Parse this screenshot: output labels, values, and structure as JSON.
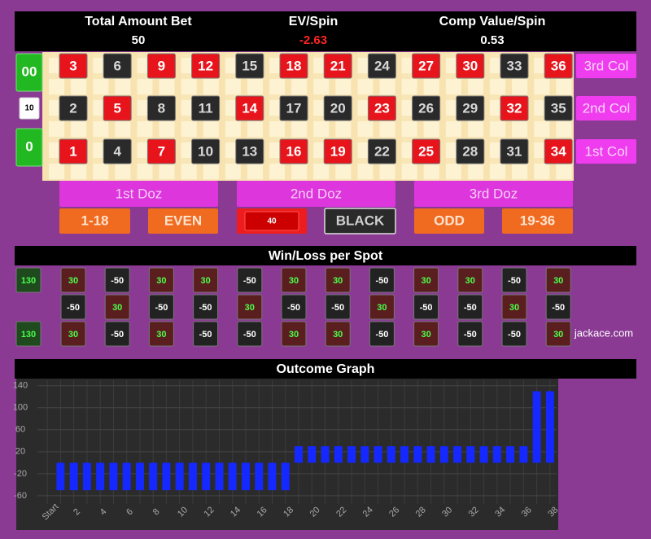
{
  "header": {
    "items": [
      {
        "label": "Total Amount Bet",
        "value": 50
      },
      {
        "label": "EV/Spin",
        "value": -2.63
      },
      {
        "label": "Comp Value/Spin",
        "value": 0.53
      }
    ]
  },
  "board": {
    "zeros": [
      "00",
      "0"
    ],
    "zero_chip": 10,
    "rows": [
      [
        {
          "n": 3,
          "color": "red"
        },
        {
          "n": 6,
          "color": "black"
        },
        {
          "n": 9,
          "color": "red"
        },
        {
          "n": 12,
          "color": "red"
        },
        {
          "n": 15,
          "color": "black"
        },
        {
          "n": 18,
          "color": "red"
        },
        {
          "n": 21,
          "color": "red"
        },
        {
          "n": 24,
          "color": "black"
        },
        {
          "n": 27,
          "color": "red"
        },
        {
          "n": 30,
          "color": "red"
        },
        {
          "n": 33,
          "color": "black"
        },
        {
          "n": 36,
          "color": "red"
        }
      ],
      [
        {
          "n": 2,
          "color": "black"
        },
        {
          "n": 5,
          "color": "red"
        },
        {
          "n": 8,
          "color": "black"
        },
        {
          "n": 11,
          "color": "black"
        },
        {
          "n": 14,
          "color": "red"
        },
        {
          "n": 17,
          "color": "black"
        },
        {
          "n": 20,
          "color": "black"
        },
        {
          "n": 23,
          "color": "red"
        },
        {
          "n": 26,
          "color": "black"
        },
        {
          "n": 29,
          "color": "black"
        },
        {
          "n": 32,
          "color": "red"
        },
        {
          "n": 35,
          "color": "black"
        }
      ],
      [
        {
          "n": 1,
          "color": "red"
        },
        {
          "n": 4,
          "color": "black"
        },
        {
          "n": 7,
          "color": "red"
        },
        {
          "n": 10,
          "color": "black"
        },
        {
          "n": 13,
          "color": "black"
        },
        {
          "n": 16,
          "color": "red"
        },
        {
          "n": 19,
          "color": "red"
        },
        {
          "n": 22,
          "color": "black"
        },
        {
          "n": 25,
          "color": "red"
        },
        {
          "n": 28,
          "color": "black"
        },
        {
          "n": 31,
          "color": "black"
        },
        {
          "n": 34,
          "color": "red"
        }
      ]
    ],
    "columns": [
      "3rd Col",
      "2nd Col",
      "1st Col"
    ],
    "dozens": [
      "1st Doz",
      "2nd Doz",
      "3rd Doz"
    ],
    "outside": [
      {
        "label": "1-18"
      },
      {
        "label": "EVEN"
      },
      {
        "chip": 40
      },
      {
        "label": "BLACK"
      },
      {
        "label": "ODD"
      },
      {
        "label": "19-36"
      }
    ]
  },
  "win_loss": {
    "title": "Win/Loss per Spot",
    "zeros": [
      130,
      130
    ],
    "rows": [
      [
        30,
        -50,
        30,
        30,
        -50,
        30,
        30,
        -50,
        30,
        30,
        -50,
        30
      ],
      [
        -50,
        30,
        -50,
        -50,
        30,
        -50,
        -50,
        30,
        -50,
        -50,
        30,
        -50
      ],
      [
        30,
        -50,
        30,
        -50,
        -50,
        30,
        30,
        -50,
        30,
        -50,
        -50,
        30
      ]
    ],
    "site": "jackace.com"
  },
  "chart_data": {
    "type": "bar",
    "title": "Outcome Graph",
    "categories": [
      "Start",
      null,
      "2",
      null,
      "4",
      null,
      "6",
      null,
      "8",
      null,
      "10",
      null,
      "12",
      null,
      "14",
      null,
      "16",
      null,
      "18",
      null,
      "20",
      null,
      "22",
      null,
      "24",
      null,
      "26",
      null,
      "28",
      null,
      "30",
      null,
      "32",
      null,
      "34",
      null,
      "36",
      null,
      "38"
    ],
    "values": [
      null,
      -50,
      -50,
      -50,
      -50,
      -50,
      -50,
      -50,
      -50,
      -50,
      -50,
      -50,
      -50,
      -50,
      -50,
      -50,
      -50,
      -50,
      -50,
      30,
      30,
      30,
      30,
      30,
      30,
      30,
      30,
      30,
      30,
      30,
      30,
      30,
      30,
      30,
      30,
      30,
      30,
      130,
      130
    ],
    "color": "#1428ff",
    "ylim": [
      -75,
      150
    ],
    "yticks": [
      -60,
      -20,
      20,
      60,
      100,
      140
    ],
    "grid": true
  }
}
